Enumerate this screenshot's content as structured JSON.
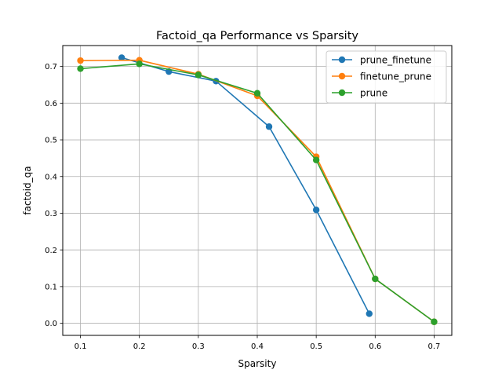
{
  "chart_data": {
    "type": "line",
    "title": "Factoid_qa Performance vs Sparsity",
    "xlabel": "Sparsity",
    "ylabel": "factoid_qa",
    "xlim": [
      0.07,
      0.73
    ],
    "ylim": [
      -0.033,
      0.757
    ],
    "xticks": [
      0.1,
      0.2,
      0.3,
      0.4,
      0.5,
      0.6,
      0.7
    ],
    "yticks": [
      0.0,
      0.1,
      0.2,
      0.3,
      0.4,
      0.5,
      0.6,
      0.7
    ],
    "xtick_labels": [
      "0.1",
      "0.2",
      "0.3",
      "0.4",
      "0.5",
      "0.6",
      "0.7"
    ],
    "ytick_labels": [
      "0.0",
      "0.1",
      "0.2",
      "0.3",
      "0.4",
      "0.5",
      "0.6",
      "0.7"
    ],
    "grid": true,
    "legend_position": "top-right",
    "series": [
      {
        "name": "prune_finetune",
        "color": "#1f77b4",
        "x": [
          0.17,
          0.25,
          0.33,
          0.42,
          0.5,
          0.59
        ],
        "y": [
          0.724,
          0.686,
          0.66,
          0.536,
          0.309,
          0.026
        ]
      },
      {
        "name": "finetune_prune",
        "color": "#ff7f0e",
        "x": [
          0.1,
          0.2,
          0.3,
          0.4,
          0.5,
          0.6,
          0.7
        ],
        "y": [
          0.716,
          0.717,
          0.679,
          0.62,
          0.454,
          0.121,
          0.004
        ]
      },
      {
        "name": "prune",
        "color": "#2ca02c",
        "x": [
          0.1,
          0.2,
          0.3,
          0.4,
          0.5,
          0.6,
          0.7
        ],
        "y": [
          0.694,
          0.707,
          0.677,
          0.627,
          0.445,
          0.121,
          0.004
        ]
      }
    ]
  }
}
